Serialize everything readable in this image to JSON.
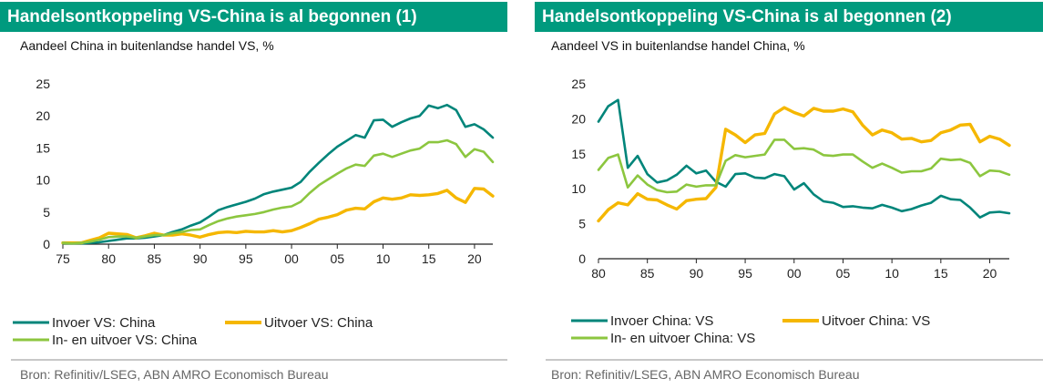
{
  "footer_source": "Bron: Refinitiv/LSEG, ABN AMRO Economisch Bureau",
  "chart_data": [
    {
      "type": "line",
      "title": "Handelsontkoppeling VS-China is al begonnen (1)",
      "subtitle": "Aandeel China in buitenlandse handel VS, %",
      "xlim": [
        75,
        22
      ],
      "ylim": [
        0,
        25
      ],
      "yticks": [
        0,
        5,
        10,
        15,
        20,
        25
      ],
      "xtick_labels": [
        "75",
        "80",
        "85",
        "90",
        "95",
        "00",
        "05",
        "10",
        "15",
        "20"
      ],
      "grid": false,
      "legend_position": "bottom",
      "series": [
        {
          "name": "Invoer VS: China",
          "color": "#00857a",
          "x": [
            1975,
            1976,
            1977,
            1978,
            1979,
            1980,
            1981,
            1982,
            1983,
            1984,
            1985,
            1986,
            1987,
            1988,
            1989,
            1990,
            1991,
            1992,
            1993,
            1994,
            1995,
            1996,
            1997,
            1998,
            1999,
            2000,
            2001,
            2002,
            2003,
            2004,
            2005,
            2006,
            2007,
            2008,
            2009,
            2010,
            2011,
            2012,
            2013,
            2014,
            2015,
            2016,
            2017,
            2018,
            2019,
            2020,
            2021,
            2022
          ],
          "values": [
            0.1,
            0.1,
            0.1,
            0.2,
            0.3,
            0.5,
            0.7,
            0.9,
            0.9,
            1.0,
            1.2,
            1.4,
            1.9,
            2.3,
            2.9,
            3.4,
            4.3,
            5.3,
            5.8,
            6.2,
            6.6,
            7.1,
            7.8,
            8.2,
            8.5,
            8.8,
            9.7,
            11.3,
            12.7,
            14.0,
            15.2,
            16.1,
            17.0,
            16.6,
            19.3,
            19.4,
            18.3,
            19.0,
            19.6,
            20.0,
            21.6,
            21.2,
            21.7,
            20.9,
            18.3,
            18.7,
            17.9,
            16.6
          ]
        },
        {
          "name": "Uitvoer VS: China",
          "color": "#f5b700",
          "x": [
            1975,
            1976,
            1977,
            1978,
            1979,
            1980,
            1981,
            1982,
            1983,
            1984,
            1985,
            1986,
            1987,
            1988,
            1989,
            1990,
            1991,
            1992,
            1993,
            1994,
            1995,
            1996,
            1997,
            1998,
            1999,
            2000,
            2001,
            2002,
            2003,
            2004,
            2005,
            2006,
            2007,
            2008,
            2009,
            2010,
            2011,
            2012,
            2013,
            2014,
            2015,
            2016,
            2017,
            2018,
            2019,
            2020,
            2021,
            2022
          ],
          "values": [
            0.2,
            0.2,
            0.2,
            0.6,
            1.0,
            1.7,
            1.6,
            1.5,
            1.0,
            1.3,
            1.7,
            1.4,
            1.4,
            1.6,
            1.4,
            1.1,
            1.5,
            1.8,
            1.9,
            1.8,
            2.0,
            1.9,
            1.9,
            2.1,
            1.9,
            2.1,
            2.6,
            3.2,
            3.9,
            4.2,
            4.6,
            5.3,
            5.6,
            5.5,
            6.6,
            7.2,
            7.0,
            7.2,
            7.7,
            7.6,
            7.7,
            7.9,
            8.4,
            7.2,
            6.5,
            8.7,
            8.6,
            7.5
          ]
        },
        {
          "name": "In- en uitvoer VS: China",
          "color": "#8cc63f",
          "x": [
            1975,
            1976,
            1977,
            1978,
            1979,
            1980,
            1981,
            1982,
            1983,
            1984,
            1985,
            1986,
            1987,
            1988,
            1989,
            1990,
            1991,
            1992,
            1993,
            1994,
            1995,
            1996,
            1997,
            1998,
            1999,
            2000,
            2001,
            2002,
            2003,
            2004,
            2005,
            2006,
            2007,
            2008,
            2009,
            2010,
            2011,
            2012,
            2013,
            2014,
            2015,
            2016,
            2017,
            2018,
            2019,
            2020,
            2021,
            2022
          ],
          "values": [
            0.2,
            0.1,
            0.2,
            0.4,
            0.7,
            1.1,
            1.2,
            1.2,
            1.0,
            1.2,
            1.4,
            1.4,
            1.7,
            1.9,
            2.2,
            2.3,
            3.0,
            3.6,
            4.0,
            4.3,
            4.5,
            4.7,
            5.0,
            5.4,
            5.7,
            5.9,
            6.6,
            8.0,
            9.2,
            10.1,
            11.0,
            11.8,
            12.4,
            12.2,
            13.8,
            14.1,
            13.6,
            14.1,
            14.6,
            14.9,
            15.9,
            15.9,
            16.2,
            15.6,
            13.6,
            14.8,
            14.4,
            12.8
          ]
        }
      ]
    },
    {
      "type": "line",
      "title": "Handelsontkoppeling VS-China is al begonnen (2)",
      "subtitle": "Aandeel VS in buitenlandse handel China, %",
      "xlim": [
        80,
        22
      ],
      "ylim": [
        0,
        25
      ],
      "yticks": [
        0,
        5,
        10,
        15,
        20,
        25
      ],
      "xtick_labels": [
        "80",
        "85",
        "90",
        "95",
        "00",
        "05",
        "10",
        "15",
        "20"
      ],
      "grid": false,
      "legend_position": "bottom",
      "series": [
        {
          "name": "Invoer China: VS",
          "color": "#00857a",
          "x": [
            1980,
            1981,
            1982,
            1983,
            1984,
            1985,
            1986,
            1987,
            1988,
            1989,
            1990,
            1991,
            1992,
            1993,
            1994,
            1995,
            1996,
            1997,
            1998,
            1999,
            2000,
            2001,
            2002,
            2003,
            2004,
            2005,
            2006,
            2007,
            2008,
            2009,
            2010,
            2011,
            2012,
            2013,
            2014,
            2015,
            2016,
            2017,
            2018,
            2019,
            2020,
            2021,
            2022
          ],
          "values": [
            19.6,
            21.8,
            22.7,
            13.0,
            14.7,
            12.1,
            10.9,
            11.2,
            12.0,
            13.3,
            12.2,
            12.6,
            11.0,
            10.3,
            12.1,
            12.2,
            11.6,
            11.5,
            12.1,
            11.8,
            9.9,
            10.8,
            9.2,
            8.2,
            8.0,
            7.4,
            7.5,
            7.3,
            7.2,
            7.7,
            7.3,
            6.8,
            7.1,
            7.6,
            8.0,
            9.0,
            8.5,
            8.4,
            7.3,
            5.9,
            6.6,
            6.7,
            6.5
          ]
        },
        {
          "name": "Uitvoer China: VS",
          "color": "#f5b700",
          "x": [
            1980,
            1981,
            1982,
            1983,
            1984,
            1985,
            1986,
            1987,
            1988,
            1989,
            1990,
            1991,
            1992,
            1993,
            1994,
            1995,
            1996,
            1997,
            1998,
            1999,
            2000,
            2001,
            2002,
            2003,
            2004,
            2005,
            2006,
            2007,
            2008,
            2009,
            2010,
            2011,
            2012,
            2013,
            2014,
            2015,
            2016,
            2017,
            2018,
            2019,
            2020,
            2021,
            2022
          ],
          "values": [
            5.4,
            7.0,
            8.0,
            7.7,
            9.3,
            8.5,
            8.4,
            7.7,
            7.1,
            8.3,
            8.5,
            8.6,
            10.2,
            18.5,
            17.7,
            16.6,
            17.7,
            17.9,
            20.7,
            21.6,
            20.9,
            20.4,
            21.5,
            21.1,
            21.1,
            21.4,
            21.0,
            19.1,
            17.7,
            18.4,
            18.0,
            17.1,
            17.2,
            16.7,
            16.9,
            18.0,
            18.4,
            19.1,
            19.2,
            16.7,
            17.5,
            17.1,
            16.2
          ]
        },
        {
          "name": "In- en uitvoer China: VS",
          "color": "#8cc63f",
          "x": [
            1980,
            1981,
            1982,
            1983,
            1984,
            1985,
            1986,
            1987,
            1988,
            1989,
            1990,
            1991,
            1992,
            1993,
            1994,
            1995,
            1996,
            1997,
            1998,
            1999,
            2000,
            2001,
            2002,
            2003,
            2004,
            2005,
            2006,
            2007,
            2008,
            2009,
            2010,
            2011,
            2012,
            2013,
            2014,
            2015,
            2016,
            2017,
            2018,
            2019,
            2020,
            2021,
            2022
          ],
          "values": [
            12.7,
            14.4,
            14.9,
            10.2,
            11.9,
            10.6,
            9.8,
            9.5,
            9.6,
            10.6,
            10.3,
            10.5,
            10.5,
            14.0,
            14.8,
            14.5,
            14.7,
            14.9,
            17.0,
            17.0,
            15.7,
            15.8,
            15.6,
            14.8,
            14.7,
            14.9,
            14.9,
            13.9,
            13.0,
            13.6,
            13.0,
            12.3,
            12.5,
            12.5,
            12.9,
            14.3,
            14.1,
            14.2,
            13.7,
            11.8,
            12.6,
            12.5,
            12.0
          ]
        }
      ]
    }
  ]
}
